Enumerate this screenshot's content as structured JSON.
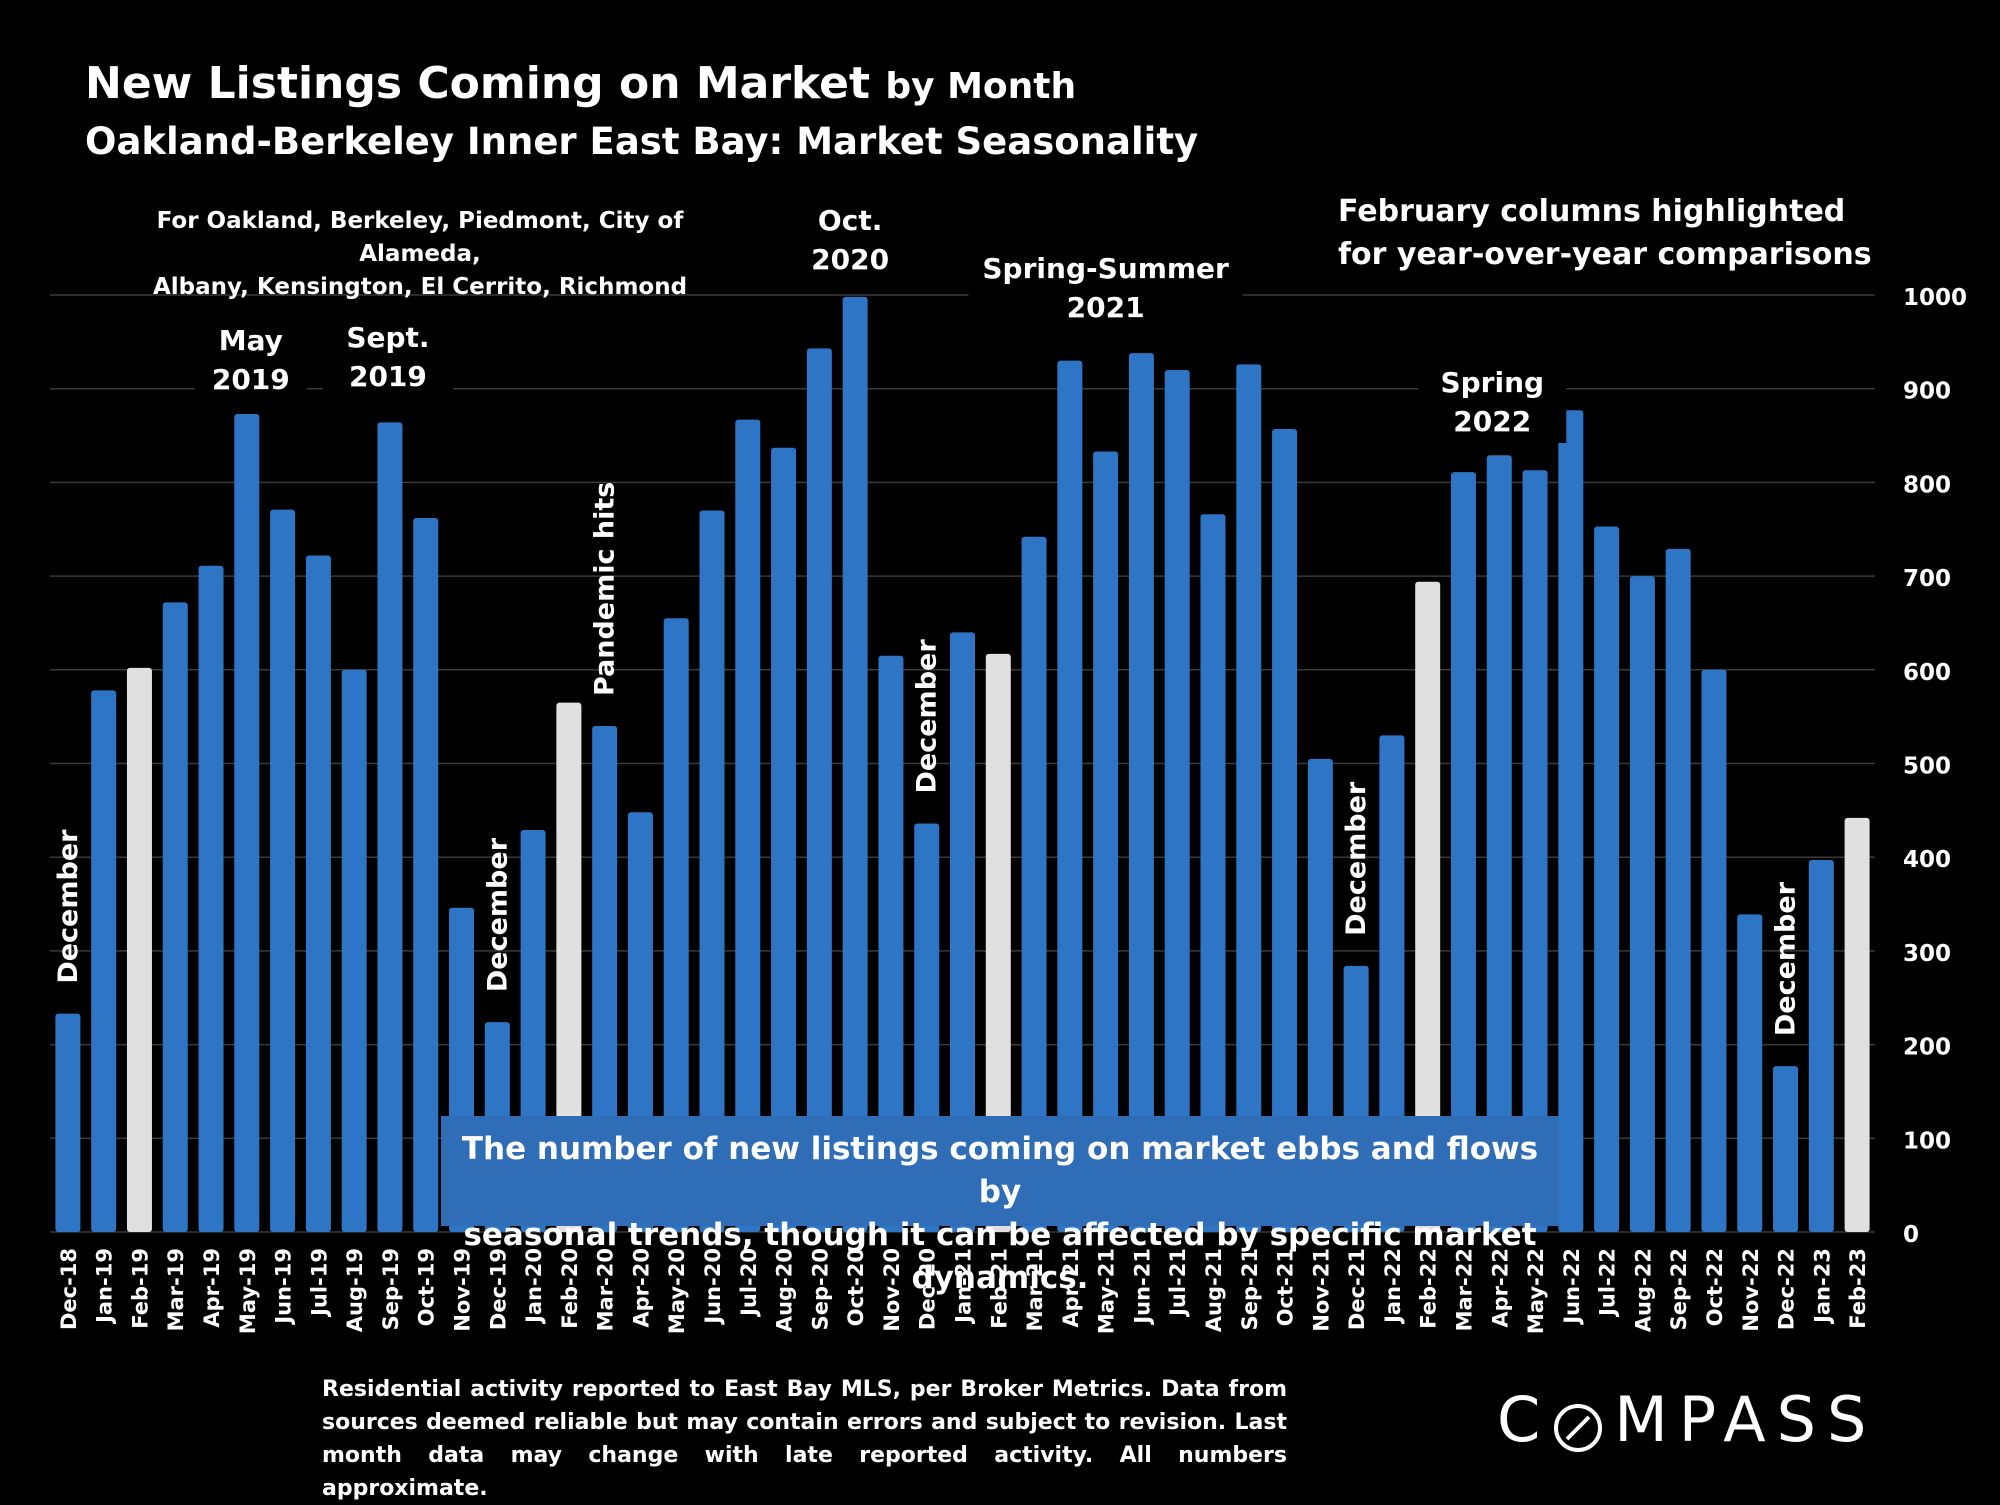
{
  "header": {
    "title": "New Listings Coming on Market",
    "title_suffix": "by Month",
    "subtitle": "Oakland-Berkeley Inner East Bay: Market Seasonality",
    "areas_line1": "For Oakland, Berkeley, Piedmont, City of Alameda,",
    "areas_line2": "Albany, Kensington, El Cerrito, Richmond",
    "feb_note_line1": "February columns highlighted",
    "feb_note_line2": "for year-over-year comparisons"
  },
  "callout": {
    "line1": "The number of new listings coming on market ebbs and flows by",
    "line2": "seasonal trends, though it can be affected by specific market dynamics."
  },
  "footer": {
    "text": "Residential activity reported to East Bay MLS, per Broker Metrics. Data from sources deemed reliable but may contain errors and subject to revision. Last month data may change with late reported activity. All numbers approximate."
  },
  "logo": {
    "text_left": "C",
    "text_right": "MPASS"
  },
  "colors": {
    "bar": "#2e75c6",
    "highlight": "#e0e0e0",
    "background": "#000000",
    "grid": "#3a3a3a",
    "callout": "#2f6eb6"
  },
  "chart_data": {
    "type": "bar",
    "ylim": [
      0,
      1000
    ],
    "yticks": [
      0,
      100,
      200,
      300,
      400,
      500,
      600,
      700,
      800,
      900,
      1000
    ],
    "grid": true,
    "y_axis_side": "right",
    "categories": [
      "Dec-18",
      "Jan-19",
      "Feb-19",
      "Mar-19",
      "Apr-19",
      "May-19",
      "Jun-19",
      "Jul-19",
      "Aug-19",
      "Sep-19",
      "Oct-19",
      "Nov-19",
      "Dec-19",
      "Jan-20",
      "Feb-20",
      "Mar-20",
      "Apr-20",
      "May-20",
      "Jun-20",
      "Jul-20",
      "Aug-20",
      "Sep-20",
      "Oct-20",
      "Nov-20",
      "Dec-20",
      "Jan-21",
      "Feb-21",
      "Mar-21",
      "Apr-21",
      "May-21",
      "Jun-21",
      "Jul-21",
      "Aug-21",
      "Sep-21",
      "Oct-21",
      "Nov-21",
      "Dec-21",
      "Jan-22",
      "Feb-22",
      "Mar-22",
      "Apr-22",
      "May-22",
      "Jun-22",
      "Jul-22",
      "Aug-22",
      "Sep-22",
      "Oct-22",
      "Nov-22",
      "Dec-22",
      "Jan-23",
      "Feb-23"
    ],
    "values": [
      233,
      578,
      602,
      672,
      711,
      873,
      771,
      722,
      600,
      864,
      762,
      346,
      224,
      429,
      565,
      540,
      448,
      655,
      770,
      867,
      837,
      943,
      998,
      615,
      436,
      640,
      617,
      742,
      930,
      833,
      938,
      920,
      766,
      926,
      857,
      505,
      284,
      530,
      694,
      811,
      829,
      813,
      877,
      753,
      700,
      729,
      600,
      339,
      177,
      397,
      442
    ],
    "highlighted": [
      "Feb-19",
      "Feb-20",
      "Feb-21",
      "Feb-22",
      "Feb-23"
    ],
    "annotations": [
      {
        "lines": [
          "December"
        ],
        "at": "Dec-18",
        "vertical": true
      },
      {
        "lines": [
          "May",
          "2019"
        ],
        "at": "May-19",
        "vertical": false
      },
      {
        "lines": [
          "Sept.",
          "2019"
        ],
        "at": "Sep-19",
        "vertical": false
      },
      {
        "lines": [
          "December"
        ],
        "at": "Dec-19",
        "vertical": true
      },
      {
        "lines": [
          "Pandemic hits"
        ],
        "at": "Mar-20",
        "vertical": true
      },
      {
        "lines": [
          "Oct.",
          "2020"
        ],
        "at": "Oct-20",
        "vertical": false
      },
      {
        "lines": [
          "December"
        ],
        "at": "Dec-20",
        "vertical": true
      },
      {
        "lines": [
          "Spring-Summer",
          "2021"
        ],
        "at": "May-21",
        "vertical": false
      },
      {
        "lines": [
          "December"
        ],
        "at": "Dec-21",
        "vertical": true
      },
      {
        "lines": [
          "Spring",
          "2022"
        ],
        "at": "Apr-22",
        "vertical": false
      },
      {
        "lines": [
          "December"
        ],
        "at": "Dec-22",
        "vertical": true
      }
    ]
  }
}
